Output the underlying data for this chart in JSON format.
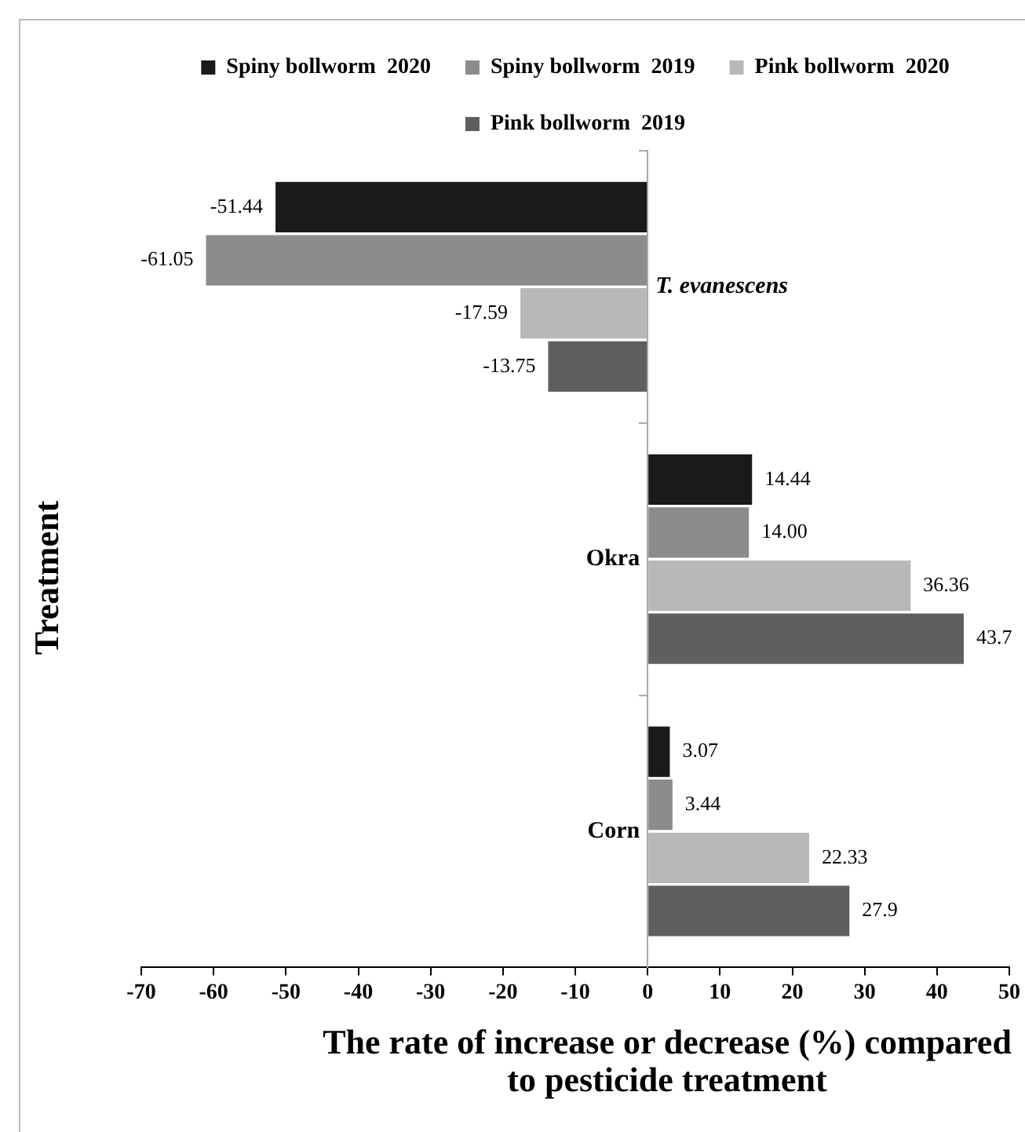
{
  "chart_data": {
    "type": "bar",
    "orientation": "horizontal",
    "categories": [
      "T. evanescens",
      "Okra",
      "Corn"
    ],
    "series": [
      {
        "name": "Spiny bollworm  2020",
        "color": "#1a1a1a",
        "values": [
          -51.44,
          14.44,
          3.07
        ],
        "value_labels": [
          "-51.44",
          "14.44",
          "3.07"
        ]
      },
      {
        "name": "Spiny bollworm  2019",
        "color": "#8c8c8c",
        "values": [
          -61.05,
          14.0,
          3.44
        ],
        "value_labels": [
          "-61.05",
          "14.00",
          "3.44"
        ]
      },
      {
        "name": "Pink bollworm  2020",
        "color": "#b8b8b8",
        "values": [
          -17.59,
          36.36,
          22.33
        ],
        "value_labels": [
          "-17.59",
          "36.36",
          "22.33"
        ]
      },
      {
        "name": "Pink bollworm  2019",
        "color": "#5f5f5f",
        "values": [
          -13.75,
          43.7,
          27.9
        ],
        "value_labels": [
          "-13.75",
          "43.7",
          "27.9"
        ]
      }
    ],
    "xlabel": "The rate of increase or decrease (%) compared to pesticide treatment",
    "ylabel": "Treatment",
    "xlim": [
      -70,
      50
    ],
    "xticks": [
      -70,
      -60,
      -50,
      -40,
      -30,
      -20,
      -10,
      0,
      10,
      20,
      30,
      40,
      50
    ],
    "grid": false,
    "legend": "top"
  }
}
